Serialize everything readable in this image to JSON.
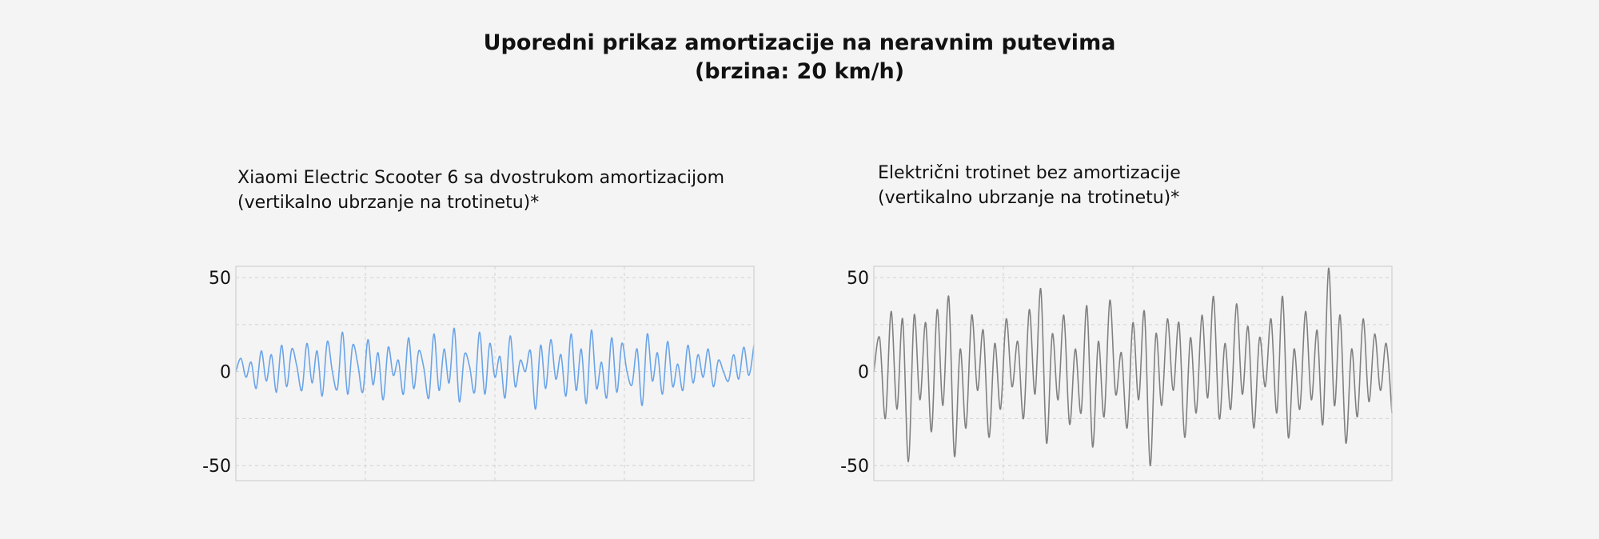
{
  "title": {
    "line1": "Uporedni prikaz amortizacije na neravnim putevima",
    "line2": "(brzina: 20 km/h)"
  },
  "colors": {
    "left_line": "#6aa4e8",
    "right_line": "#808080",
    "grid": "#d2d2d2",
    "frame": "#cfcfcf",
    "background": "#f4f4f4"
  },
  "chart_data": [
    {
      "type": "line",
      "title": "Xiaomi Electric Scooter 6 sa dvostrukom amortizacijom",
      "subtitle": "(vertikalno ubrzanje na trotinetu)*",
      "xlabel": "",
      "ylabel": "",
      "ylim": [
        -58,
        56
      ],
      "yticks": [
        50,
        0,
        -50
      ],
      "grid": true,
      "series": [
        {
          "color": "#6aa4e8",
          "values": [
            0,
            7,
            -3,
            5,
            -9,
            11,
            -5,
            9,
            -11,
            14,
            -8,
            12,
            3,
            -10,
            15,
            -6,
            11,
            -13,
            16,
            0,
            -9,
            21,
            -12,
            14,
            4,
            -11,
            17,
            -7,
            10,
            -15,
            13,
            -2,
            6,
            -12,
            18,
            -9,
            11,
            2,
            -14,
            20,
            -10,
            12,
            -6,
            23,
            -16,
            9,
            3,
            -11,
            21,
            -12,
            15,
            -3,
            8,
            -14,
            19,
            -8,
            6,
            0,
            11,
            -20,
            14,
            -9,
            17,
            -4,
            9,
            -13,
            20,
            -10,
            12,
            -17,
            22,
            -9,
            5,
            -14,
            18,
            -11,
            15,
            0,
            -7,
            12,
            -18,
            20,
            -5,
            10,
            -12,
            16,
            -8,
            4,
            -10,
            14,
            -6,
            9,
            -3,
            12,
            -8,
            6,
            0,
            -5,
            9,
            -4,
            13,
            -2,
            14
          ]
        }
      ]
    },
    {
      "type": "line",
      "title": "Električni trotinet bez amortizacije",
      "subtitle": "(vertikalno ubrzanje na trotinetu)*",
      "xlabel": "",
      "ylabel": "",
      "ylim": [
        -58,
        56
      ],
      "yticks": [
        50,
        0,
        -50
      ],
      "grid": true,
      "series": [
        {
          "color": "#808080",
          "values": [
            0,
            18,
            -25,
            32,
            -20,
            28,
            -48,
            30,
            -15,
            26,
            -32,
            33,
            -18,
            40,
            -45,
            12,
            -30,
            30,
            -10,
            22,
            -35,
            15,
            -20,
            28,
            -8,
            16,
            -25,
            33,
            -12,
            44,
            -38,
            20,
            -15,
            30,
            -28,
            12,
            -22,
            35,
            -40,
            16,
            -24,
            38,
            -12,
            10,
            -30,
            26,
            -15,
            32,
            -50,
            20,
            -18,
            28,
            -10,
            26,
            -35,
            18,
            -22,
            30,
            -14,
            40,
            -25,
            15,
            -20,
            36,
            -12,
            24,
            -30,
            18,
            -8,
            28,
            -22,
            40,
            -35,
            12,
            -20,
            32,
            -15,
            22,
            -28,
            55,
            -18,
            30,
            -38,
            12,
            -24,
            28,
            -16,
            20,
            -10,
            15,
            -22
          ]
        }
      ]
    }
  ]
}
